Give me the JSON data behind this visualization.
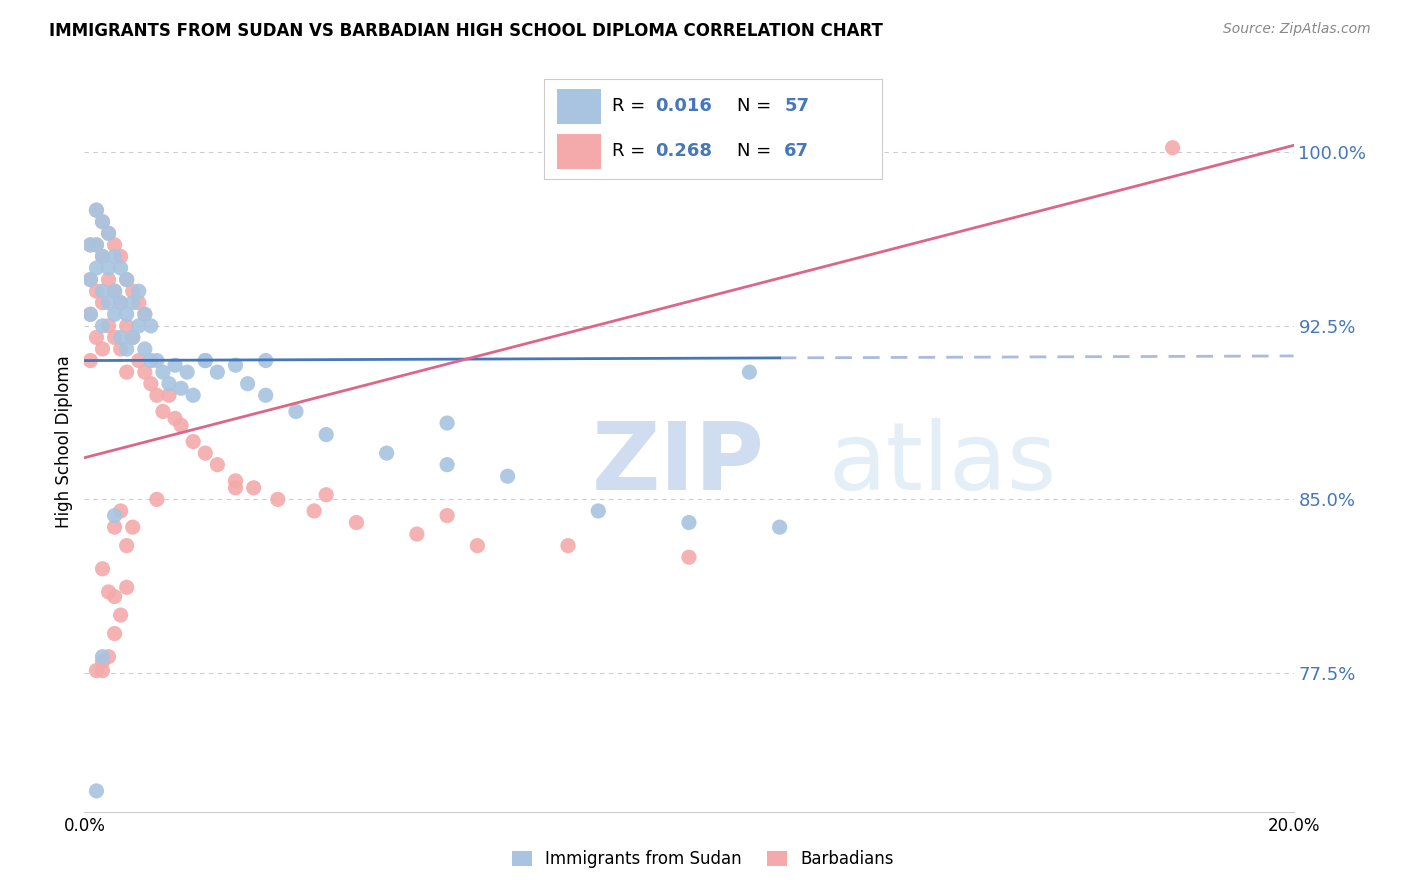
{
  "title": "IMMIGRANTS FROM SUDAN VS BARBADIAN HIGH SCHOOL DIPLOMA CORRELATION CHART",
  "source": "Source: ZipAtlas.com",
  "ylabel": "High School Diploma",
  "ytick_labels": [
    "77.5%",
    "85.0%",
    "92.5%",
    "100.0%"
  ],
  "ytick_values": [
    0.775,
    0.85,
    0.925,
    1.0
  ],
  "xmin": 0.0,
  "xmax": 0.2,
  "ymin": 0.715,
  "ymax": 1.035,
  "blue_color": "#A8C4E0",
  "pink_color": "#F4AAAA",
  "blue_line_color": "#4477BB",
  "pink_line_color": "#DD6688",
  "blue_dashed_color": "#AABBDD",
  "watermark_zip": "ZIP",
  "watermark_atlas": "atlas",
  "sudan_line_y0": 0.91,
  "sudan_line_y1": 0.912,
  "barbadian_line_y0": 0.868,
  "barbadian_line_y1": 1.003,
  "sudan_x": [
    0.001,
    0.001,
    0.001,
    0.002,
    0.002,
    0.002,
    0.003,
    0.003,
    0.003,
    0.003,
    0.004,
    0.004,
    0.004,
    0.005,
    0.005,
    0.005,
    0.006,
    0.006,
    0.006,
    0.007,
    0.007,
    0.007,
    0.008,
    0.008,
    0.009,
    0.009,
    0.01,
    0.01,
    0.011,
    0.011,
    0.012,
    0.013,
    0.014,
    0.015,
    0.016,
    0.017,
    0.018,
    0.02,
    0.022,
    0.025,
    0.027,
    0.03,
    0.035,
    0.04,
    0.05,
    0.06,
    0.07,
    0.085,
    0.1,
    0.115,
    0.003,
    0.02,
    0.03,
    0.06,
    0.11,
    0.005,
    0.002
  ],
  "sudan_y": [
    0.96,
    0.945,
    0.93,
    0.975,
    0.96,
    0.95,
    0.97,
    0.955,
    0.94,
    0.925,
    0.965,
    0.95,
    0.935,
    0.955,
    0.94,
    0.93,
    0.95,
    0.935,
    0.92,
    0.945,
    0.93,
    0.915,
    0.935,
    0.92,
    0.94,
    0.925,
    0.93,
    0.915,
    0.925,
    0.91,
    0.91,
    0.905,
    0.9,
    0.908,
    0.898,
    0.905,
    0.895,
    0.91,
    0.905,
    0.908,
    0.9,
    0.895,
    0.888,
    0.878,
    0.87,
    0.865,
    0.86,
    0.845,
    0.84,
    0.838,
    0.782,
    0.91,
    0.91,
    0.883,
    0.905,
    0.843,
    0.724
  ],
  "barbadian_x": [
    0.001,
    0.001,
    0.001,
    0.001,
    0.002,
    0.002,
    0.002,
    0.002,
    0.003,
    0.003,
    0.003,
    0.003,
    0.004,
    0.004,
    0.004,
    0.005,
    0.005,
    0.005,
    0.006,
    0.006,
    0.006,
    0.007,
    0.007,
    0.007,
    0.008,
    0.008,
    0.009,
    0.009,
    0.01,
    0.01,
    0.011,
    0.012,
    0.013,
    0.014,
    0.015,
    0.016,
    0.018,
    0.02,
    0.022,
    0.025,
    0.028,
    0.032,
    0.038,
    0.045,
    0.055,
    0.065,
    0.08,
    0.1,
    0.003,
    0.005,
    0.008,
    0.012,
    0.025,
    0.04,
    0.06,
    0.18,
    0.002,
    0.003,
    0.004,
    0.005,
    0.006,
    0.007,
    0.003,
    0.004,
    0.005,
    0.006,
    0.007
  ],
  "barbadian_y": [
    0.96,
    0.945,
    0.93,
    0.91,
    0.975,
    0.96,
    0.94,
    0.92,
    0.97,
    0.955,
    0.935,
    0.915,
    0.965,
    0.945,
    0.925,
    0.96,
    0.94,
    0.92,
    0.955,
    0.935,
    0.915,
    0.945,
    0.925,
    0.905,
    0.94,
    0.92,
    0.935,
    0.91,
    0.93,
    0.905,
    0.9,
    0.895,
    0.888,
    0.895,
    0.885,
    0.882,
    0.875,
    0.87,
    0.865,
    0.858,
    0.855,
    0.85,
    0.845,
    0.84,
    0.835,
    0.83,
    0.83,
    0.825,
    0.78,
    0.808,
    0.838,
    0.85,
    0.855,
    0.852,
    0.843,
    1.002,
    0.776,
    0.776,
    0.782,
    0.792,
    0.8,
    0.812,
    0.82,
    0.81,
    0.838,
    0.845,
    0.83
  ]
}
